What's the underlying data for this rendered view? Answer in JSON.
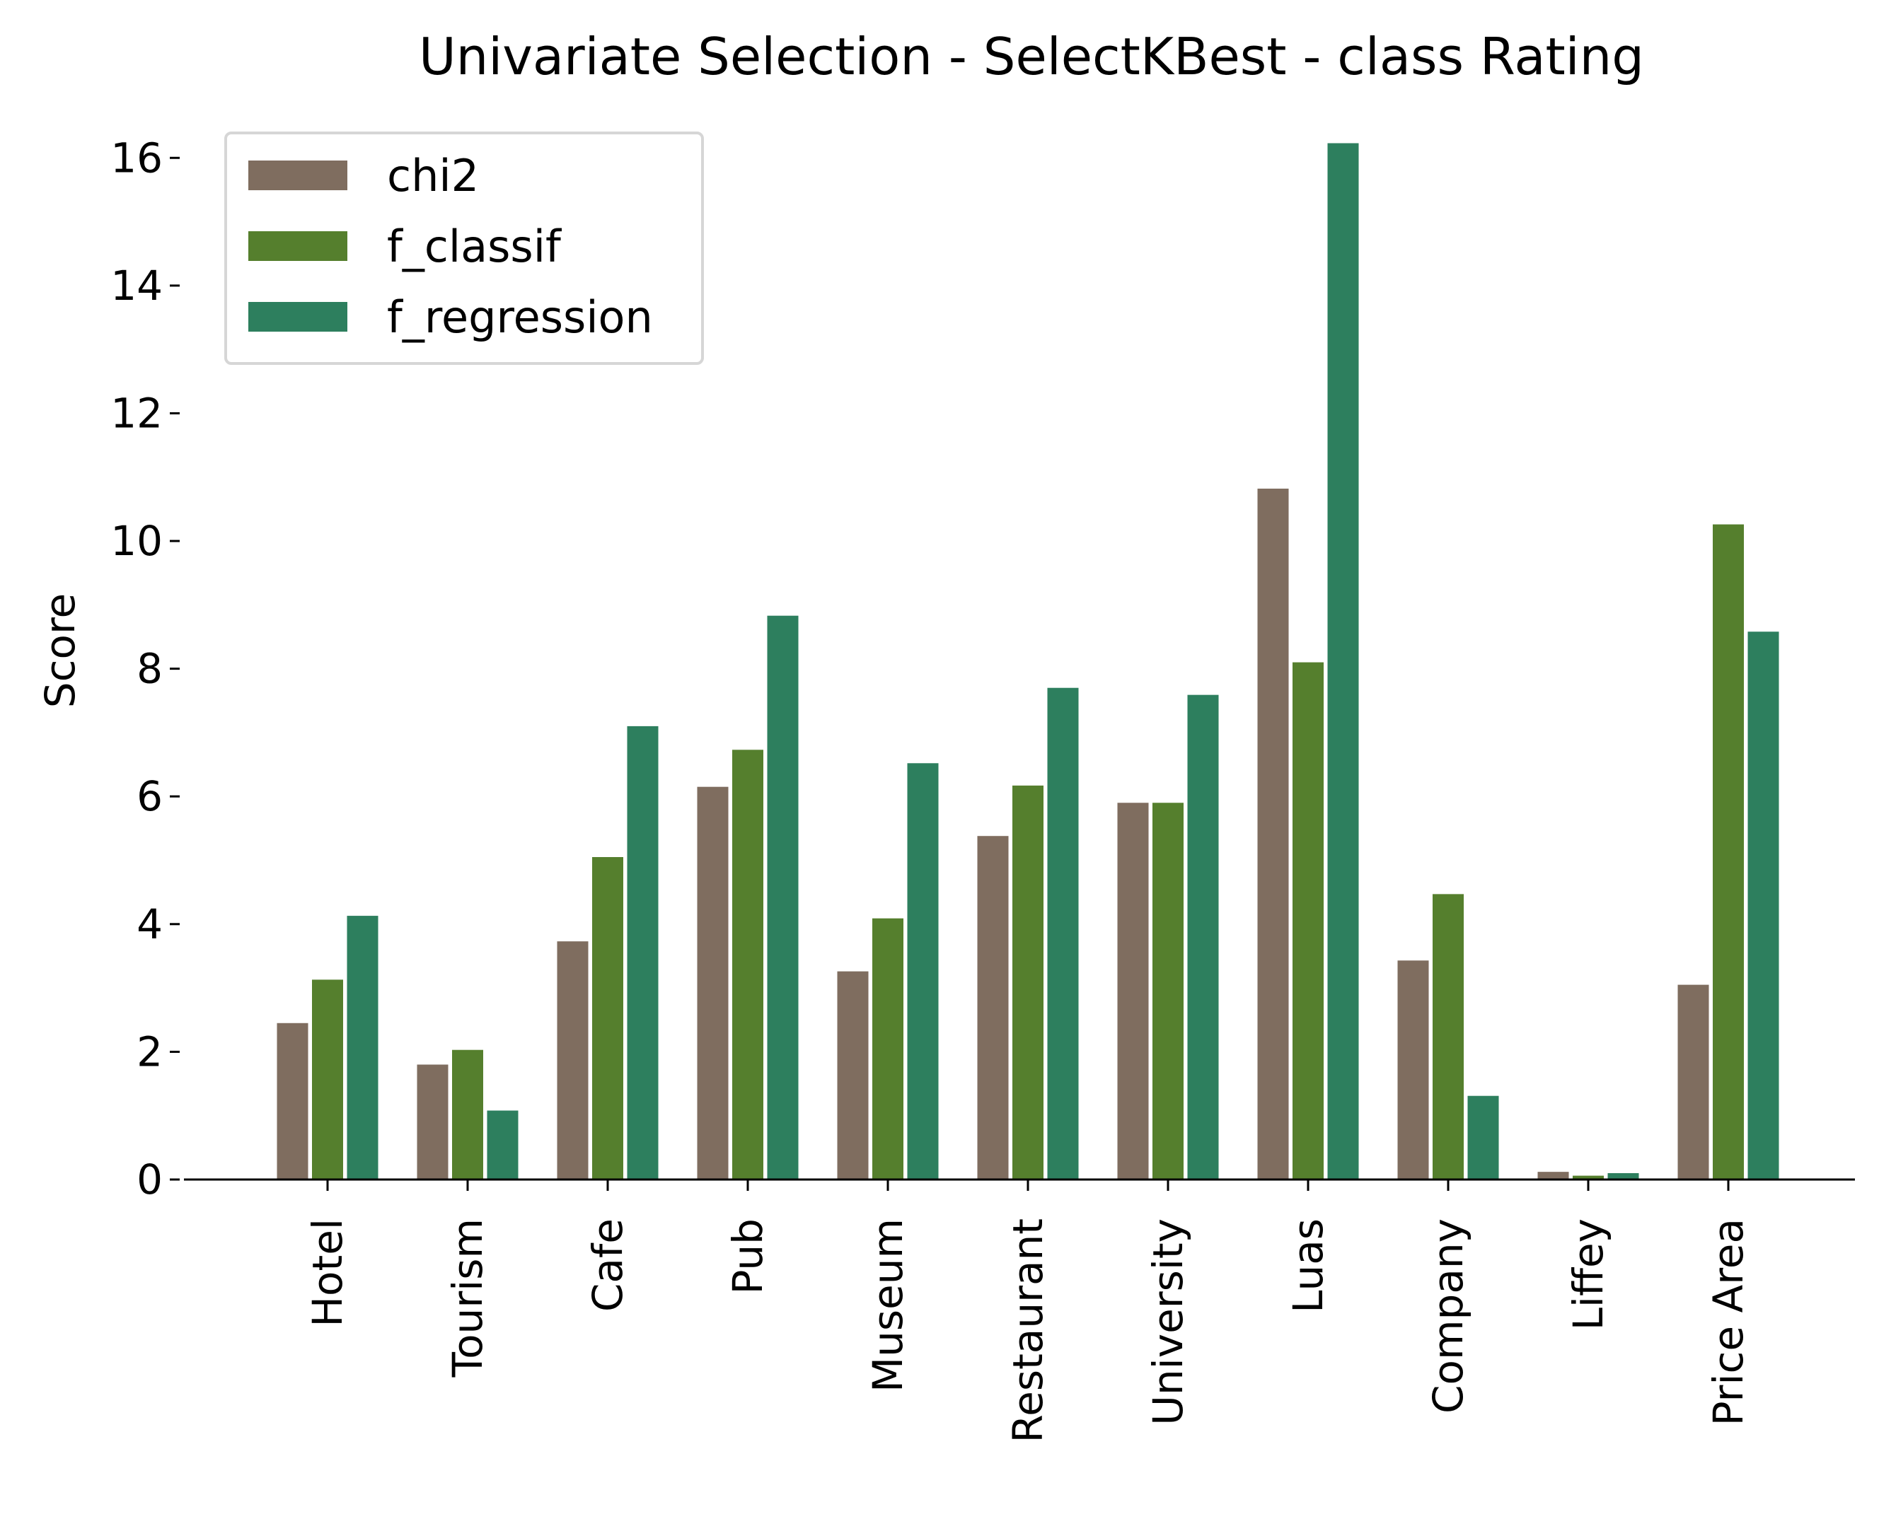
{
  "chart_data": {
    "type": "bar",
    "title": "Univariate Selection - SelectKBest - class Rating",
    "xlabel": "",
    "ylabel": "Score",
    "ylim": [
      0,
      16.9
    ],
    "yticks": [
      0,
      2,
      4,
      6,
      8,
      10,
      12,
      14,
      16
    ],
    "categories": [
      "Hotel",
      "Tourism",
      "Cafe",
      "Pub",
      "Museum",
      "Restaurant",
      "University",
      "Luas",
      "Company",
      "Liffey",
      "Price Area"
    ],
    "series": [
      {
        "name": "chi2",
        "color": "#7f6d5f",
        "values": [
          2.45,
          1.8,
          3.73,
          6.15,
          3.26,
          5.38,
          5.9,
          10.82,
          3.43,
          0.12,
          3.05
        ]
      },
      {
        "name": "f_classif",
        "color": "#557f2d",
        "values": [
          3.13,
          2.03,
          5.05,
          6.73,
          4.09,
          6.17,
          5.9,
          8.1,
          4.47,
          0.06,
          10.26
        ]
      },
      {
        "name": "f_regression",
        "color": "#2d7f5e",
        "values": [
          4.13,
          1.08,
          7.1,
          8.83,
          6.52,
          7.7,
          7.59,
          16.23,
          1.31,
          0.1,
          8.58
        ]
      }
    ],
    "legend_position": "upper-left",
    "grid": false
  }
}
